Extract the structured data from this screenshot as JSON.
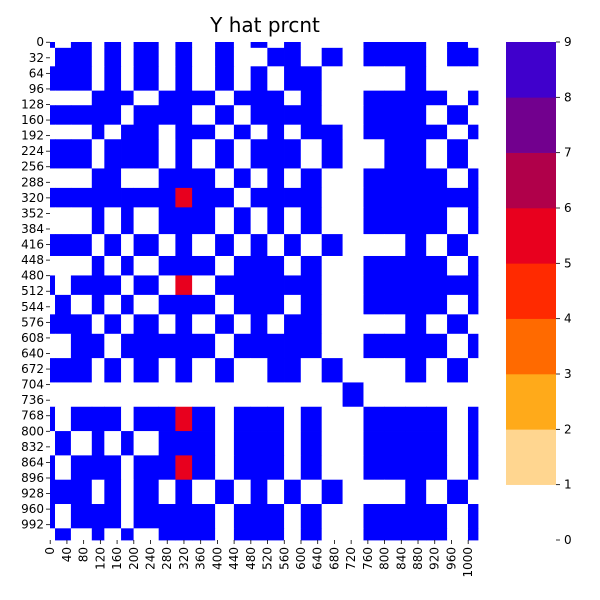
{
  "chart_data": {
    "type": "heatmap",
    "title": "Y hat prcnt",
    "xlabel": "",
    "ylabel": "",
    "n_rows": 1024,
    "n_cols": 1024,
    "x_tick_labels": [
      "0",
      "40",
      "80",
      "120",
      "160",
      "200",
      "240",
      "280",
      "320",
      "360",
      "400",
      "440",
      "480",
      "520",
      "560",
      "600",
      "640",
      "680",
      "720",
      "760",
      "800",
      "840",
      "880",
      "920",
      "960",
      "1000"
    ],
    "y_tick_labels": [
      "0",
      "32",
      "64",
      "96",
      "128",
      "160",
      "192",
      "224",
      "256",
      "288",
      "320",
      "352",
      "384",
      "416",
      "448",
      "480",
      "512",
      "544",
      "576",
      "608",
      "640",
      "672",
      "704",
      "736",
      "768",
      "800",
      "832",
      "864",
      "896",
      "928",
      "960",
      "992"
    ],
    "colorbar": {
      "range": [
        0,
        9
      ],
      "tick_labels": [
        "0",
        "1",
        "2",
        "3",
        "4",
        "5",
        "6",
        "7",
        "8",
        "9"
      ],
      "levels": [
        {
          "min": 0,
          "max": 1,
          "color": "#ffffff"
        },
        {
          "min": 1,
          "max": 2,
          "color": "#ffd690"
        },
        {
          "min": 2,
          "max": 3,
          "color": "#ffaa1a"
        },
        {
          "min": 3,
          "max": 4,
          "color": "#ff6a00"
        },
        {
          "min": 4,
          "max": 5,
          "color": "#ff2a00"
        },
        {
          "min": 5,
          "max": 6,
          "color": "#e8001e"
        },
        {
          "min": 6,
          "max": 7,
          "color": "#b0004a"
        },
        {
          "min": 7,
          "max": 8,
          "color": "#72008e"
        },
        {
          "min": 8,
          "max": 9,
          "color": "#4000cc"
        },
        {
          "min": 9,
          "max": 9,
          "color": "#0000ff"
        }
      ]
    },
    "block_bounds": [
      0,
      12,
      50,
      100,
      130,
      170,
      200,
      260,
      300,
      340,
      395,
      440,
      480,
      520,
      560,
      600,
      650,
      700,
      750,
      800,
      850,
      900,
      950,
      1000,
      1024
    ],
    "block_values": [
      [
        9,
        0,
        9,
        0,
        9,
        0,
        9,
        0,
        9,
        0,
        9,
        0,
        9,
        0,
        9,
        0,
        0,
        0,
        9,
        9,
        9,
        0,
        9,
        0
      ],
      [
        0,
        9,
        9,
        0,
        9,
        0,
        9,
        0,
        9,
        0,
        9,
        0,
        0,
        9,
        9,
        0,
        9,
        0,
        9,
        9,
        9,
        0,
        9,
        9
      ],
      [
        9,
        9,
        9,
        0,
        9,
        0,
        9,
        0,
        9,
        0,
        9,
        0,
        9,
        0,
        9,
        9,
        0,
        0,
        0,
        0,
        9,
        0,
        0,
        0
      ],
      [
        0,
        0,
        0,
        9,
        9,
        9,
        0,
        9,
        9,
        9,
        0,
        9,
        9,
        9,
        0,
        9,
        0,
        0,
        9,
        9,
        9,
        9,
        0,
        9
      ],
      [
        9,
        9,
        9,
        9,
        9,
        0,
        9,
        9,
        9,
        0,
        9,
        0,
        9,
        9,
        9,
        9,
        0,
        0,
        9,
        9,
        9,
        0,
        9,
        0
      ],
      [
        0,
        0,
        0,
        9,
        0,
        9,
        9,
        0,
        9,
        9,
        0,
        9,
        0,
        9,
        0,
        9,
        9,
        0,
        9,
        9,
        9,
        9,
        0,
        9
      ],
      [
        9,
        9,
        9,
        0,
        9,
        9,
        9,
        0,
        9,
        0,
        9,
        0,
        9,
        9,
        9,
        0,
        9,
        0,
        0,
        9,
        9,
        0,
        9,
        0
      ],
      [
        0,
        0,
        0,
        9,
        9,
        0,
        0,
        9,
        9,
        9,
        0,
        9,
        0,
        9,
        0,
        9,
        0,
        0,
        9,
        9,
        9,
        9,
        0,
        9
      ],
      [
        9,
        9,
        9,
        9,
        9,
        9,
        9,
        9,
        5,
        9,
        9,
        0,
        9,
        9,
        9,
        9,
        0,
        0,
        9,
        9,
        9,
        9,
        9,
        9
      ],
      [
        0,
        0,
        0,
        9,
        0,
        9,
        0,
        9,
        9,
        9,
        0,
        9,
        0,
        9,
        0,
        9,
        0,
        0,
        9,
        9,
        9,
        9,
        0,
        9
      ],
      [
        9,
        9,
        9,
        0,
        9,
        0,
        9,
        0,
        9,
        0,
        9,
        0,
        9,
        0,
        9,
        0,
        9,
        0,
        0,
        0,
        9,
        0,
        9,
        0
      ],
      [
        0,
        0,
        0,
        9,
        0,
        9,
        0,
        9,
        9,
        9,
        0,
        9,
        9,
        9,
        0,
        9,
        0,
        0,
        9,
        9,
        9,
        9,
        0,
        9
      ],
      [
        9,
        0,
        9,
        9,
        9,
        0,
        9,
        0,
        5,
        0,
        9,
        9,
        9,
        9,
        9,
        9,
        0,
        0,
        9,
        9,
        9,
        9,
        9,
        9
      ],
      [
        0,
        9,
        0,
        9,
        0,
        9,
        0,
        9,
        9,
        9,
        0,
        9,
        9,
        9,
        0,
        9,
        0,
        0,
        9,
        9,
        9,
        9,
        0,
        9
      ],
      [
        9,
        9,
        9,
        0,
        9,
        0,
        9,
        0,
        9,
        0,
        9,
        0,
        9,
        0,
        9,
        9,
        0,
        0,
        0,
        0,
        9,
        0,
        9,
        0
      ],
      [
        0,
        0,
        9,
        9,
        0,
        9,
        9,
        9,
        9,
        9,
        0,
        9,
        9,
        9,
        9,
        9,
        0,
        0,
        9,
        9,
        9,
        9,
        0,
        9
      ],
      [
        9,
        9,
        9,
        0,
        9,
        0,
        9,
        0,
        9,
        0,
        9,
        0,
        0,
        9,
        9,
        0,
        9,
        0,
        0,
        0,
        9,
        0,
        9,
        0
      ],
      [
        0,
        0,
        0,
        0,
        0,
        0,
        0,
        0,
        0,
        0,
        0,
        0,
        0,
        0,
        0,
        0,
        0,
        9,
        0,
        0,
        0,
        0,
        0,
        0
      ],
      [
        9,
        0,
        9,
        9,
        9,
        0,
        9,
        9,
        5,
        9,
        0,
        9,
        9,
        9,
        0,
        9,
        0,
        0,
        9,
        9,
        9,
        9,
        0,
        9
      ],
      [
        0,
        9,
        0,
        9,
        0,
        9,
        0,
        9,
        9,
        9,
        0,
        9,
        9,
        9,
        0,
        9,
        0,
        0,
        9,
        9,
        9,
        9,
        0,
        9
      ],
      [
        9,
        0,
        9,
        9,
        9,
        0,
        9,
        9,
        5,
        9,
        0,
        9,
        9,
        9,
        0,
        9,
        0,
        0,
        9,
        9,
        9,
        9,
        0,
        9
      ],
      [
        9,
        9,
        9,
        0,
        9,
        0,
        9,
        0,
        9,
        0,
        9,
        0,
        9,
        0,
        9,
        0,
        9,
        0,
        0,
        0,
        9,
        0,
        9,
        0
      ],
      [
        9,
        0,
        9,
        9,
        9,
        0,
        9,
        9,
        9,
        9,
        0,
        9,
        9,
        9,
        0,
        9,
        0,
        0,
        9,
        9,
        9,
        9,
        0,
        9
      ],
      [
        0,
        9,
        0,
        9,
        0,
        9,
        0,
        9,
        9,
        9,
        0,
        9,
        9,
        9,
        0,
        9,
        0,
        0,
        9,
        9,
        9,
        9,
        0,
        9
      ]
    ]
  }
}
